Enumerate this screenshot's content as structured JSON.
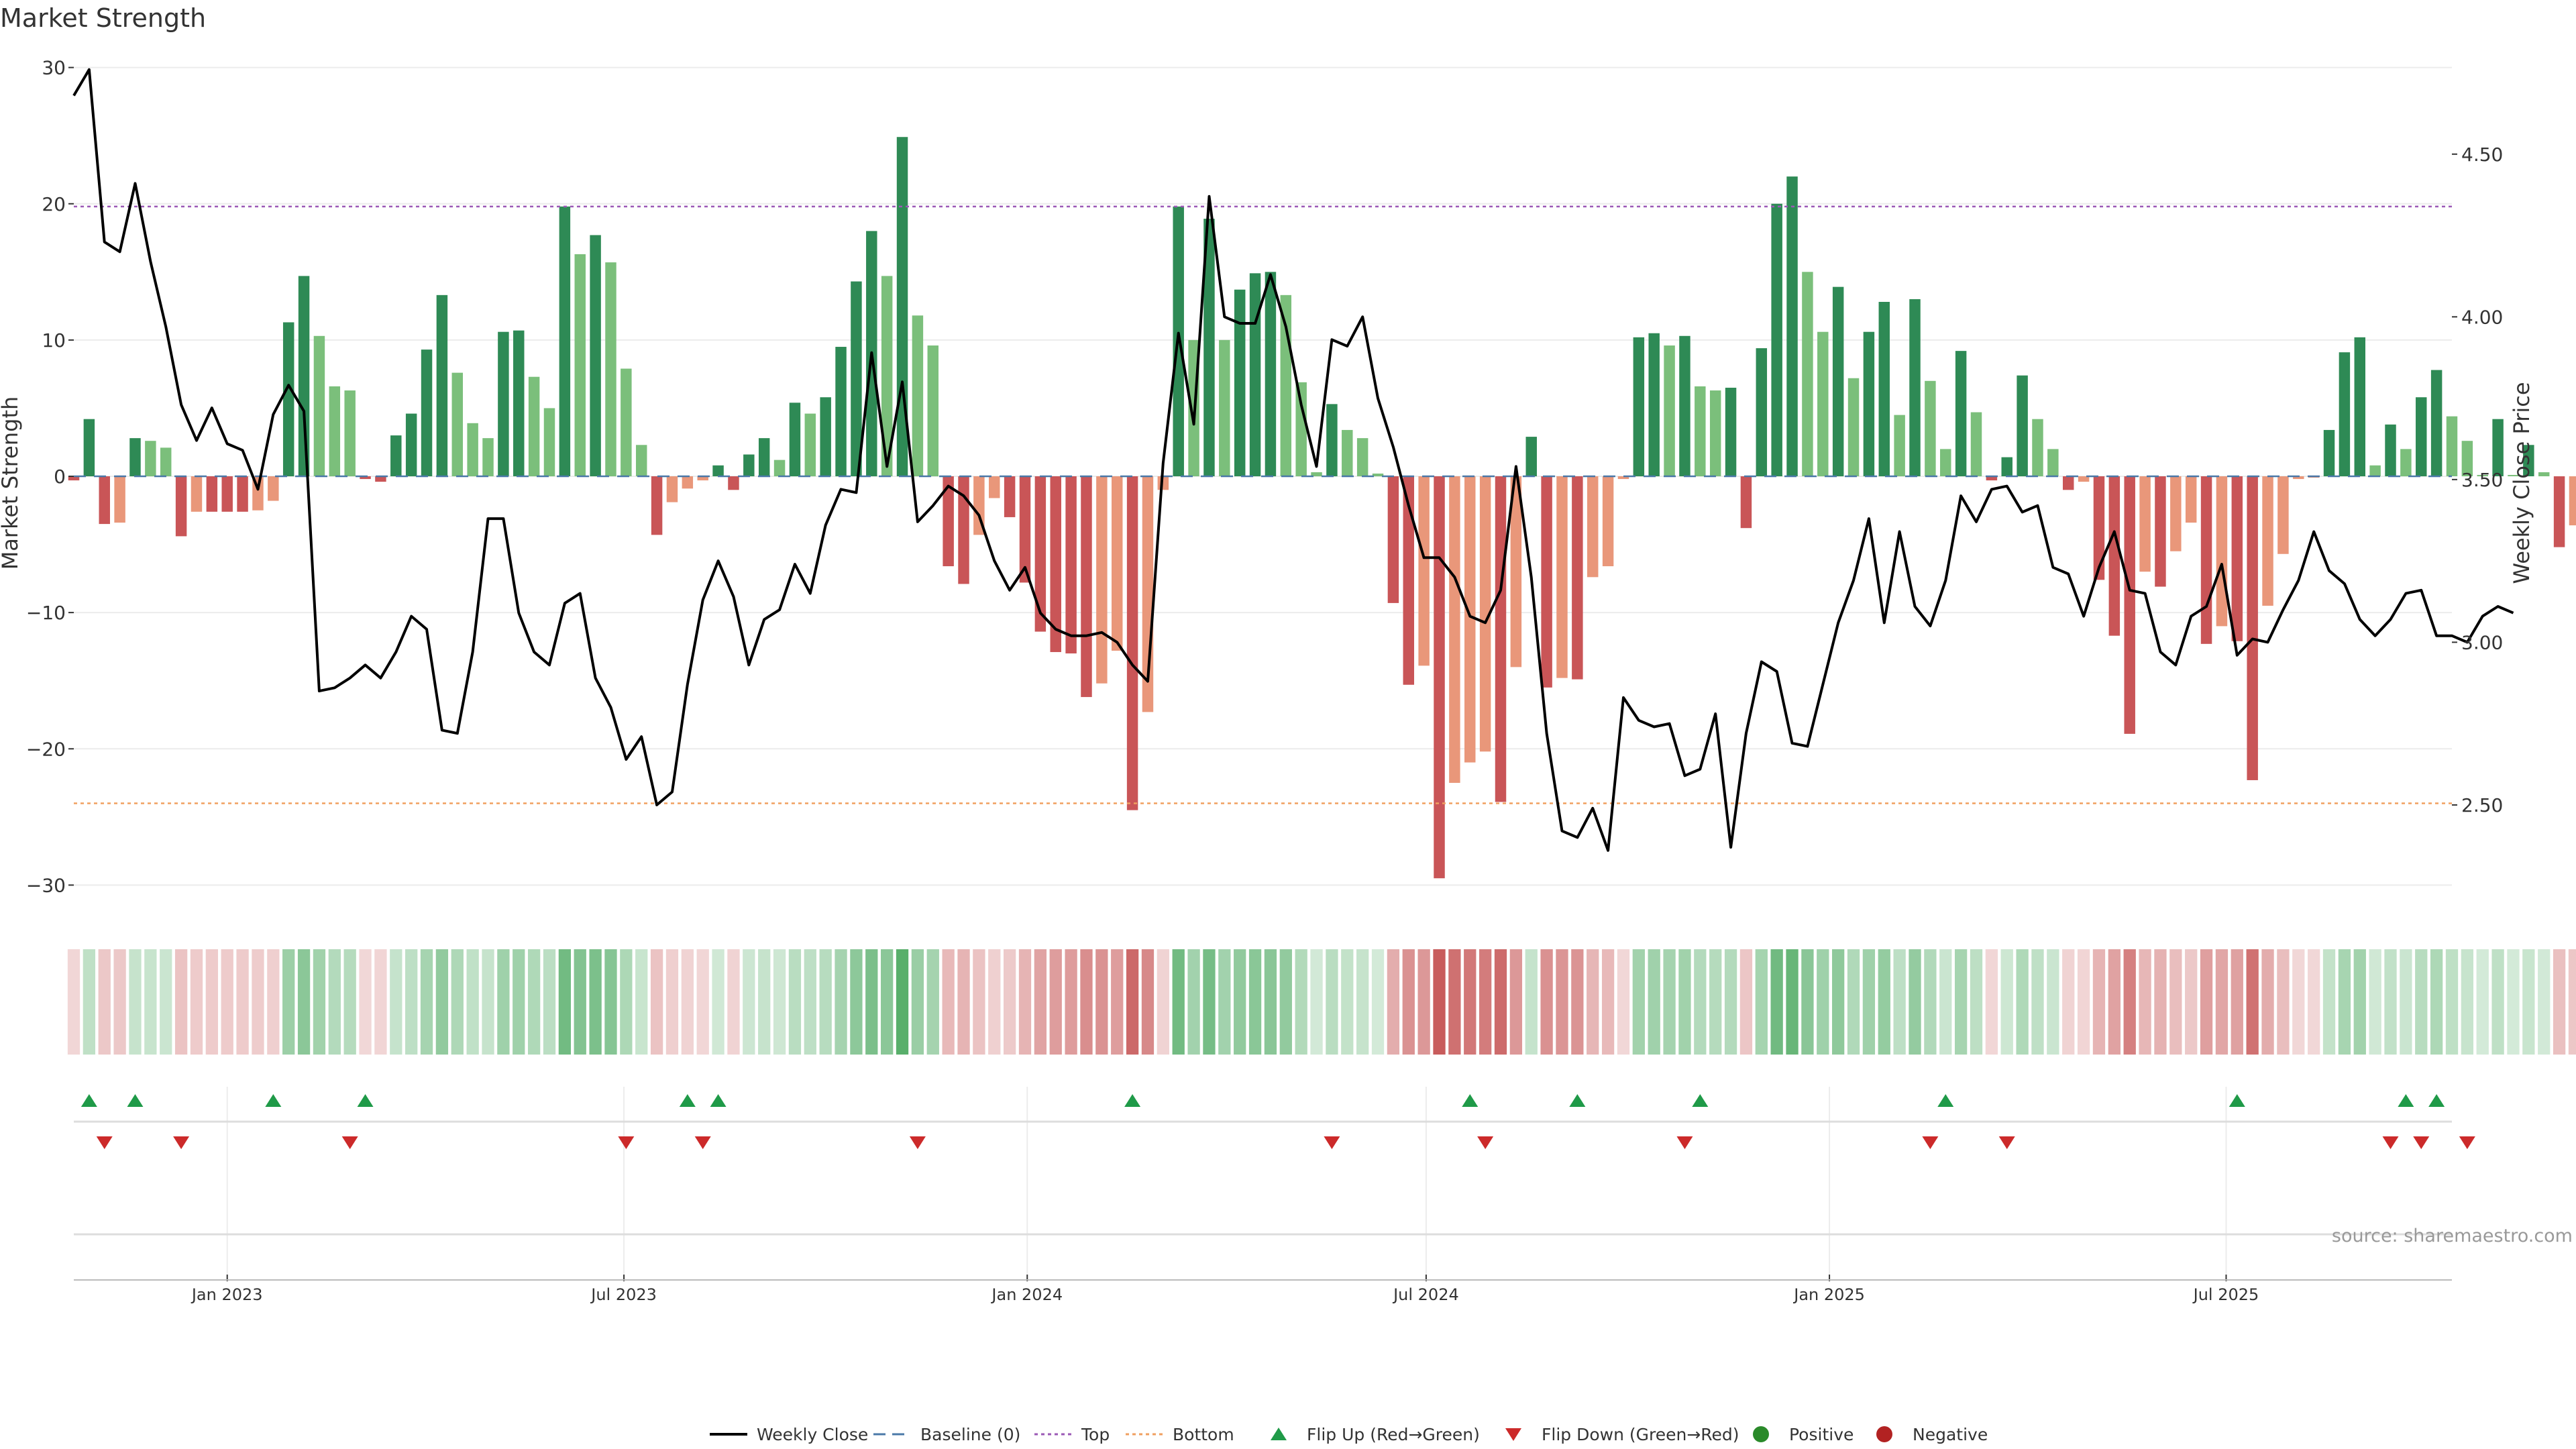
{
  "chart_data": {
    "type": "bar",
    "title": "Market Strength",
    "ylabel_left": "Market Strength",
    "ylabel_right": "Weekly Close Price",
    "ylim_left": [
      -32,
      32
    ],
    "yticks_left": [
      30,
      20,
      10,
      0,
      -10,
      -20,
      -30
    ],
    "ylim_right": [
      2.17,
      4.85
    ],
    "yticks_right": [
      4.5,
      4.0,
      3.5,
      3.0,
      2.5
    ],
    "yticks_right_labels": [
      "4.50",
      "4.00",
      "3.50",
      "3.00",
      "2.50"
    ],
    "x_range": [
      "2022-10-23",
      "2025-10-12"
    ],
    "x_ticks": [
      {
        "date": "2023-01-01",
        "label": "Jan 2023"
      },
      {
        "date": "2023-07-01",
        "label": "Jul 2023"
      },
      {
        "date": "2024-01-01",
        "label": "Jan 2024"
      },
      {
        "date": "2024-07-01",
        "label": "Jul 2024"
      },
      {
        "date": "2025-01-01",
        "label": "Jan 2025"
      },
      {
        "date": "2025-07-01",
        "label": "Jul 2025"
      }
    ],
    "start_week": "2022-10-23",
    "top_level": 19.8,
    "bottom_level": -24,
    "strength": [
      -0.3,
      4.2,
      -3.5,
      -3.4,
      2.8,
      2.6,
      2.1,
      -4.4,
      -2.6,
      -2.6,
      -2.6,
      -2.6,
      -2.5,
      -1.8,
      11.3,
      14.7,
      10.3,
      6.6,
      6.3,
      -0.2,
      -0.4,
      3.0,
      4.6,
      9.3,
      13.3,
      7.6,
      3.9,
      2.8,
      10.6,
      10.7,
      7.3,
      5.0,
      19.8,
      16.3,
      17.7,
      15.7,
      7.9,
      2.3,
      -4.3,
      -1.9,
      -0.9,
      -0.3,
      0.8,
      -1.0,
      1.6,
      2.8,
      1.2,
      5.4,
      4.6,
      5.8,
      9.5,
      14.3,
      18.0,
      14.7,
      24.9,
      11.8,
      9.6,
      -6.6,
      -7.9,
      -4.3,
      -1.6,
      -3.0,
      -7.8,
      -11.4,
      -12.9,
      -13.0,
      -16.2,
      -15.2,
      -12.8,
      -24.5,
      -17.3,
      -1.0,
      19.8,
      10.0,
      18.9,
      10.0,
      13.7,
      14.9,
      15.0,
      13.3,
      6.9,
      0.3,
      5.3,
      3.4,
      2.8,
      0.2,
      -9.3,
      -15.3,
      -13.9,
      -29.5,
      -22.5,
      -21.0,
      -20.2,
      -23.9,
      -14.0,
      2.9,
      -15.5,
      -14.8,
      -14.9,
      -7.4,
      -6.6,
      -0.2,
      10.2,
      10.5,
      9.6,
      10.3,
      6.6,
      6.3,
      6.5,
      -3.8,
      9.4,
      20.0,
      22.0,
      15.0,
      10.6,
      13.9,
      7.2,
      10.6,
      12.8,
      4.5,
      13.0,
      7.0,
      2.0,
      9.2,
      4.7,
      -0.3,
      1.4,
      7.4,
      4.2,
      2.0,
      -1.0,
      -0.4,
      -7.6,
      -11.7,
      -18.9,
      -7.0,
      -8.1,
      -5.5,
      -3.4,
      -12.3,
      -11.0,
      -12.1,
      -22.3,
      -9.5,
      -5.7,
      -0.2,
      -0.1,
      3.4,
      9.1,
      10.2,
      0.8,
      3.8,
      2.0,
      5.8,
      7.8,
      4.4,
      2.6,
      0.1,
      4.2,
      0.1,
      2.3,
      0.3,
      -5.2,
      -3.6
    ],
    "price": [
      4.68,
      4.76,
      4.23,
      4.2,
      4.41,
      4.17,
      3.97,
      3.73,
      3.62,
      3.72,
      3.61,
      3.59,
      3.47,
      3.7,
      3.79,
      3.71,
      2.85,
      2.86,
      2.89,
      2.93,
      2.89,
      2.97,
      3.08,
      3.04,
      2.73,
      2.72,
      2.97,
      3.38,
      3.38,
      3.09,
      2.97,
      2.93,
      3.12,
      3.15,
      2.89,
      2.8,
      2.64,
      2.71,
      2.5,
      2.54,
      2.87,
      3.13,
      3.25,
      3.14,
      2.93,
      3.07,
      3.1,
      3.24,
      3.15,
      3.36,
      3.47,
      3.46,
      3.89,
      3.54,
      3.8,
      3.37,
      3.42,
      3.48,
      3.45,
      3.39,
      3.25,
      3.16,
      3.23,
      3.09,
      3.04,
      3.02,
      3.02,
      3.03,
      3.0,
      2.93,
      2.88,
      3.55,
      3.95,
      3.67,
      4.37,
      4.0,
      3.98,
      3.98,
      4.13,
      3.97,
      3.73,
      3.54,
      3.93,
      3.91,
      4.0,
      3.75,
      3.6,
      3.42,
      3.26,
      3.26,
      3.2,
      3.08,
      3.06,
      3.16,
      3.54,
      3.2,
      2.72,
      2.42,
      2.4,
      2.49,
      2.36,
      2.83,
      2.76,
      2.74,
      2.75,
      2.59,
      2.61,
      2.78,
      2.37,
      2.72,
      2.94,
      2.91,
      2.69,
      2.68,
      2.87,
      3.06,
      3.19,
      3.38,
      3.06,
      3.34,
      3.11,
      3.05,
      3.19,
      3.45,
      3.37,
      3.47,
      3.48,
      3.4,
      3.42,
      3.23,
      3.21,
      3.08,
      3.23,
      3.34,
      3.16,
      3.15,
      2.97,
      2.93,
      3.08,
      3.11,
      3.24,
      2.96,
      3.01,
      3.0,
      3.1,
      3.19,
      3.34,
      3.22,
      3.18,
      3.07,
      3.02,
      3.07,
      3.15,
      3.16,
      3.02,
      3.02,
      3.0,
      3.08,
      3.11,
      3.09
    ],
    "flip_up_weeks": [
      1,
      4,
      13,
      19,
      40,
      42,
      69,
      91,
      98,
      106,
      122,
      141,
      152,
      154
    ],
    "flip_down_weeks": [
      2,
      7,
      18,
      36,
      41,
      55,
      82,
      92,
      105,
      121,
      126,
      151,
      153,
      156
    ],
    "colors": {
      "strong_green": "#2e8a55",
      "light_green": "#7bbf7b",
      "strong_red": "#c95557",
      "light_red": "#e9977a",
      "flip_up": "#1f9a48",
      "flip_down": "#cc2a2a",
      "top_line": "#9b59b6",
      "bottom_line": "#f0a060",
      "baseline": "#4a78a8",
      "positive": "#2a8a2a",
      "negative": "#b22222",
      "price_line": "#000000"
    },
    "legend": [
      {
        "label": "Weekly Close",
        "kind": "line"
      },
      {
        "label": "Baseline (0)",
        "kind": "dash"
      },
      {
        "label": "Top",
        "kind": "dot-top"
      },
      {
        "label": "Bottom",
        "kind": "dot-bottom"
      },
      {
        "label": "Flip Up (Red→Green)",
        "kind": "tri-up"
      },
      {
        "label": "Flip Down (Green→Red)",
        "kind": "tri-down"
      },
      {
        "label": "Positive",
        "kind": "dot-pos"
      },
      {
        "label": "Negative",
        "kind": "dot-neg"
      }
    ],
    "source": "source: sharemaestro.com"
  }
}
